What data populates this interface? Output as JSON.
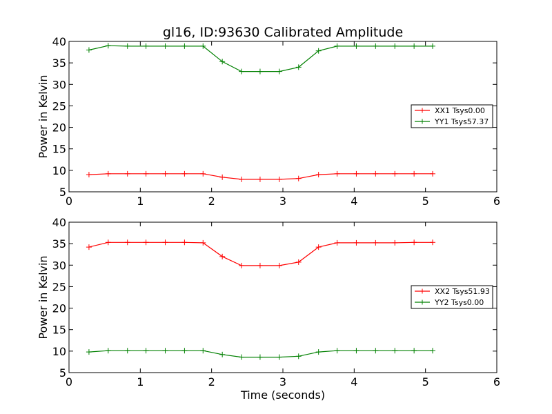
{
  "chart_data": [
    {
      "type": "line",
      "title": "gl16, ID:93630 Calibrated Amplitude",
      "xlabel": "",
      "ylabel": "Power in Kelvin",
      "xlim": [
        0,
        6
      ],
      "ylim": [
        5,
        40
      ],
      "xticks": [
        "0",
        "1",
        "2",
        "3",
        "4",
        "5",
        "6"
      ],
      "yticks": [
        "5",
        "10",
        "15",
        "20",
        "25",
        "30",
        "35",
        "40"
      ],
      "legend_position": "center-right",
      "x": [
        0.28,
        0.55,
        0.82,
        1.08,
        1.35,
        1.62,
        1.88,
        2.15,
        2.42,
        2.68,
        2.95,
        3.22,
        3.5,
        3.76,
        4.03,
        4.3,
        4.57,
        4.84,
        5.1
      ],
      "series": [
        {
          "name": "XX1 Tsys0.00",
          "color": "#ff0000",
          "values": [
            9.0,
            9.2,
            9.2,
            9.2,
            9.2,
            9.2,
            9.2,
            8.4,
            7.9,
            7.9,
            7.9,
            8.1,
            9.0,
            9.2,
            9.2,
            9.2,
            9.2,
            9.2,
            9.2
          ]
        },
        {
          "name": "YY1 Tsys57.37",
          "color": "#008000",
          "values": [
            38.0,
            39.0,
            38.9,
            38.9,
            38.9,
            38.9,
            38.9,
            35.3,
            33.0,
            33.0,
            33.0,
            34.0,
            37.8,
            38.9,
            38.9,
            38.9,
            38.9,
            38.9,
            38.9
          ]
        }
      ]
    },
    {
      "type": "line",
      "title": "",
      "xlabel": "Time (seconds)",
      "ylabel": "Power in Kelvin",
      "xlim": [
        0,
        6
      ],
      "ylim": [
        5,
        40
      ],
      "xticks": [
        "0",
        "1",
        "2",
        "3",
        "4",
        "5",
        "6"
      ],
      "yticks": [
        "5",
        "10",
        "15",
        "20",
        "25",
        "30",
        "35",
        "40"
      ],
      "legend_position": "center-right",
      "x": [
        0.28,
        0.55,
        0.82,
        1.08,
        1.35,
        1.62,
        1.88,
        2.15,
        2.42,
        2.68,
        2.95,
        3.22,
        3.5,
        3.76,
        4.03,
        4.3,
        4.57,
        4.84,
        5.1
      ],
      "series": [
        {
          "name": "XX2 Tsys51.93",
          "color": "#ff0000",
          "values": [
            34.2,
            35.3,
            35.3,
            35.3,
            35.3,
            35.3,
            35.2,
            32.0,
            29.9,
            29.9,
            29.9,
            30.7,
            34.2,
            35.2,
            35.2,
            35.2,
            35.2,
            35.3,
            35.3
          ]
        },
        {
          "name": "YY2 Tsys0.00",
          "color": "#008000",
          "values": [
            9.8,
            10.1,
            10.1,
            10.1,
            10.1,
            10.1,
            10.1,
            9.2,
            8.6,
            8.6,
            8.6,
            8.8,
            9.8,
            10.1,
            10.1,
            10.1,
            10.1,
            10.1,
            10.1
          ]
        }
      ]
    }
  ]
}
